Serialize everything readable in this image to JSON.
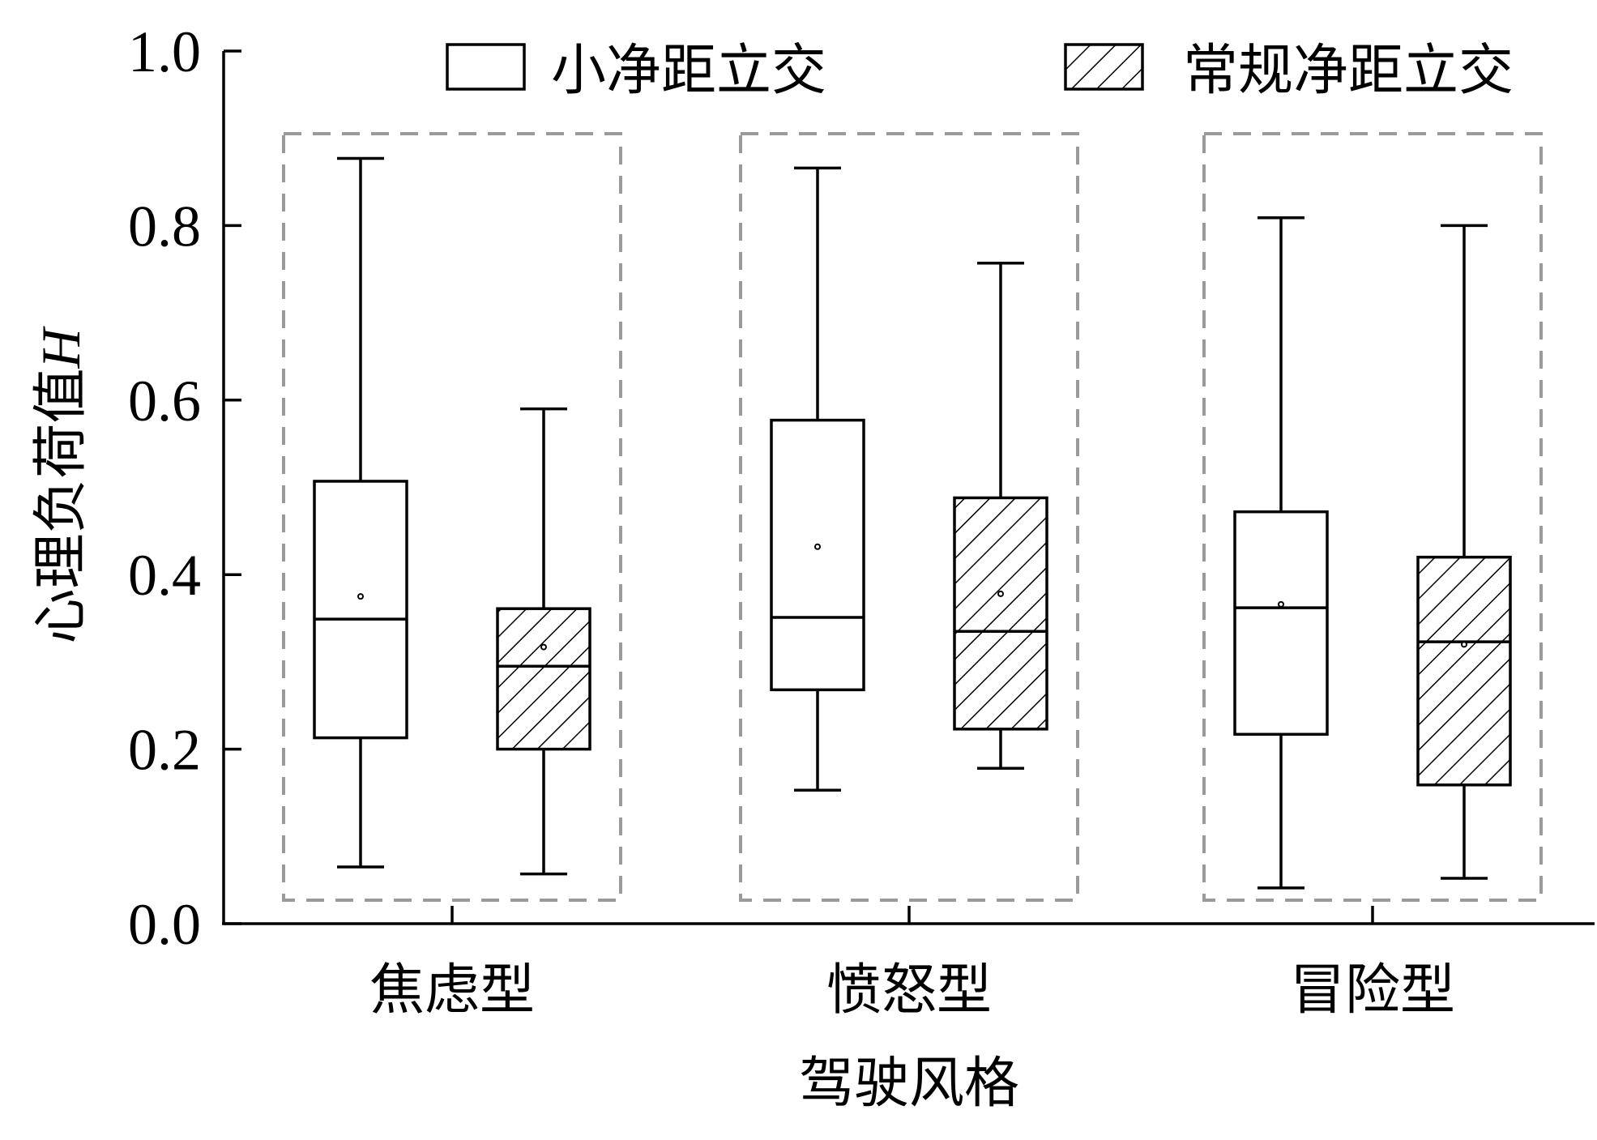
{
  "chart_data": {
    "type": "box",
    "categories": [
      "焦虑型",
      "愤怒型",
      "冒险型"
    ],
    "xlabel": "驾驶风格",
    "ylabel": "心理负荷值",
    "ylabel_symbol": "H",
    "ylim": [
      0.0,
      1.0
    ],
    "yticks": [
      "0.0",
      "0.2",
      "0.4",
      "0.6",
      "0.8",
      "1.0"
    ],
    "legend": {
      "placement": "top"
    },
    "series": [
      {
        "name": "小净距立交",
        "pattern": "plain",
        "boxes": [
          {
            "min": 0.065,
            "q1": 0.213,
            "median": 0.349,
            "q3": 0.507,
            "max": 0.877,
            "mean": 0.375
          },
          {
            "min": 0.153,
            "q1": 0.268,
            "median": 0.351,
            "q3": 0.577,
            "max": 0.866,
            "mean": 0.432
          },
          {
            "min": 0.041,
            "q1": 0.217,
            "median": 0.362,
            "q3": 0.472,
            "max": 0.809,
            "mean": 0.366
          }
        ]
      },
      {
        "name": "常规净距立交",
        "pattern": "hatched",
        "boxes": [
          {
            "min": 0.057,
            "q1": 0.2,
            "median": 0.295,
            "q3": 0.361,
            "max": 0.59,
            "mean": 0.317
          },
          {
            "min": 0.178,
            "q1": 0.223,
            "median": 0.335,
            "q3": 0.488,
            "max": 0.757,
            "mean": 0.378
          },
          {
            "min": 0.052,
            "q1": 0.159,
            "median": 0.323,
            "q3": 0.42,
            "max": 0.8,
            "mean": 0.32
          }
        ]
      }
    ],
    "colors": {
      "line": "#000000",
      "group_frame": "#9a9a9a",
      "background": "#ffffff"
    }
  }
}
